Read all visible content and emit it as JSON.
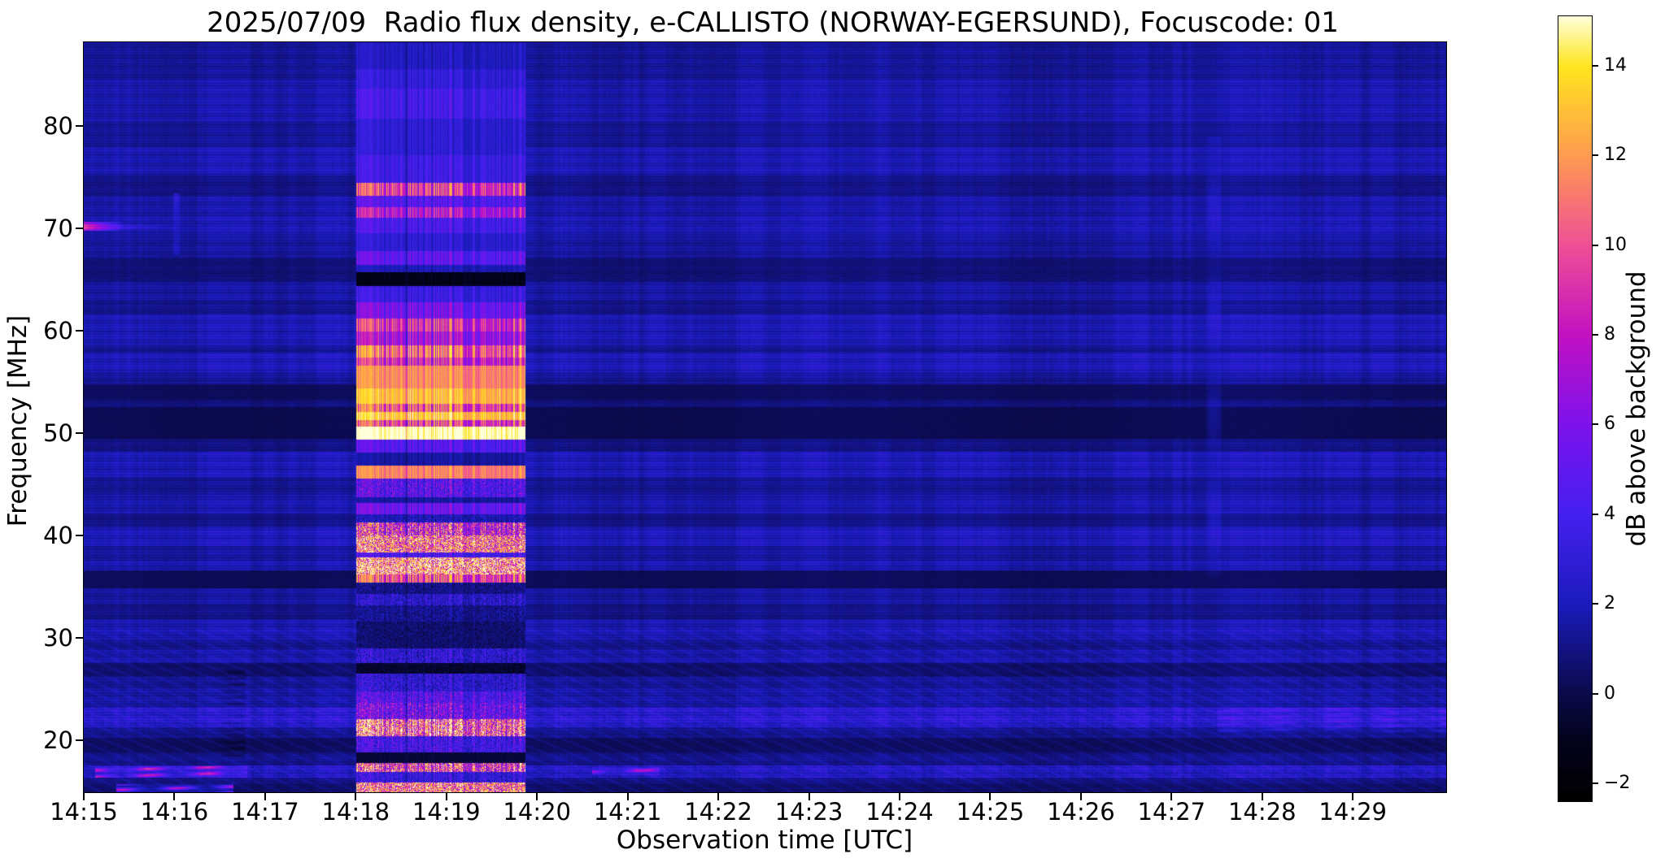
{
  "chart_data": {
    "type": "heatmap",
    "title": "2025/07/09  Radio flux density, e-CALLISTO (NORWAY-EGERSUND), Focuscode: 01",
    "xlabel": "Observation time [UTC]",
    "ylabel": "Frequency [MHz]",
    "colorbar_label": "dB above background",
    "x_tick_labels": [
      "14:15",
      "14:16",
      "14:17",
      "14:18",
      "14:19",
      "14:20",
      "14:21",
      "14:22",
      "14:23",
      "14:24",
      "14:25",
      "14:26",
      "14:27",
      "14:28",
      "14:29"
    ],
    "x_range_minutes": [
      0,
      15.03
    ],
    "y_ticks": [
      80,
      70,
      60,
      50,
      40,
      30,
      20
    ],
    "freq_range_mhz": [
      14.9,
      88.2
    ],
    "value_range_db": [
      -2.4,
      15.1
    ],
    "colorbar_ticks": [
      14,
      12,
      10,
      8,
      6,
      4,
      2,
      0,
      -2
    ],
    "grid": false,
    "colormap_stops": [
      [
        0.0,
        "#000000"
      ],
      [
        0.08,
        "#03031e"
      ],
      [
        0.137,
        "#0a0a4a],"
      ],
      [
        0.137,
        "#0a0a4a"
      ],
      [
        0.251,
        "#1b1bbd"
      ],
      [
        0.366,
        "#4520ef"
      ],
      [
        0.48,
        "#7d12ec"
      ],
      [
        0.594,
        "#c211c2"
      ],
      [
        0.709,
        "#ef5096"
      ],
      [
        0.823,
        "#ff9b50"
      ],
      [
        0.937,
        "#ffe51e"
      ],
      [
        1.0,
        "#ffffd9"
      ]
    ],
    "background_profile_db": [
      [
        88.2,
        84.5,
        1.4,
        0
      ],
      [
        84.5,
        80.5,
        1.8,
        0
      ],
      [
        80.5,
        78.0,
        1.4,
        0
      ],
      [
        78.0,
        75.2,
        1.9,
        0
      ],
      [
        75.2,
        73.2,
        1.1,
        0
      ],
      [
        73.2,
        71.2,
        1.7,
        0
      ],
      [
        71.2,
        69.3,
        1.9,
        0
      ],
      [
        69.3,
        67.2,
        1.5,
        0
      ],
      [
        67.2,
        64.9,
        0.8,
        0
      ],
      [
        64.9,
        63.0,
        1.6,
        0
      ],
      [
        63.0,
        61.6,
        1.2,
        0
      ],
      [
        61.6,
        58.6,
        2.0,
        0
      ],
      [
        58.6,
        57.9,
        1.3,
        0
      ],
      [
        57.9,
        55.9,
        2.1,
        0
      ],
      [
        55.9,
        54.8,
        1.4,
        0
      ],
      [
        54.8,
        53.3,
        0.35,
        0
      ],
      [
        53.3,
        52.6,
        0.9,
        0
      ],
      [
        52.6,
        49.5,
        0.15,
        0
      ],
      [
        49.5,
        48.2,
        1.0,
        0
      ],
      [
        48.2,
        45.7,
        2.0,
        0
      ],
      [
        45.7,
        44.0,
        1.3,
        0
      ],
      [
        44.0,
        42.2,
        1.8,
        0
      ],
      [
        42.2,
        40.9,
        1.1,
        0
      ],
      [
        40.9,
        39.0,
        2.1,
        0
      ],
      [
        39.0,
        37.5,
        1.5,
        0
      ],
      [
        37.5,
        36.6,
        1.9,
        0
      ],
      [
        36.6,
        34.9,
        0.3,
        0
      ],
      [
        34.9,
        33.3,
        1.5,
        0
      ],
      [
        33.3,
        31.8,
        1.1,
        0
      ],
      [
        31.8,
        29.9,
        1.9,
        0
      ],
      [
        29.9,
        28.8,
        1.2,
        0
      ],
      [
        28.8,
        27.6,
        1.7,
        0
      ],
      [
        27.6,
        26.3,
        0.6,
        0
      ],
      [
        26.3,
        25.0,
        1.3,
        0
      ],
      [
        25.0,
        23.2,
        1.6,
        0
      ],
      [
        23.2,
        21.3,
        2.6,
        0.5
      ],
      [
        21.3,
        20.3,
        1.2,
        0
      ],
      [
        20.3,
        18.8,
        0.35,
        0
      ],
      [
        18.8,
        17.6,
        1.1,
        0
      ],
      [
        17.6,
        16.4,
        2.2,
        0.6
      ],
      [
        16.4,
        15.7,
        1.0,
        0
      ],
      [
        15.7,
        14.9,
        0.5,
        0
      ]
    ],
    "background_default_db": 1.5,
    "burst": {
      "t_start_min": 3.0,
      "t_end_min": 4.87,
      "label": "broadband enhancement 14:18-14:20",
      "profile_db": [
        [
          88.2,
          85.6,
          2.2,
          0
        ],
        [
          85.6,
          83.7,
          3.0,
          0
        ],
        [
          83.7,
          80.8,
          3.8,
          0
        ],
        [
          80.8,
          77.2,
          2.8,
          0
        ],
        [
          77.2,
          74.5,
          3.6,
          0
        ],
        [
          74.5,
          73.2,
          9.2,
          0
        ],
        [
          73.2,
          72.1,
          4.5,
          0
        ],
        [
          72.1,
          71.1,
          7.5,
          0
        ],
        [
          71.1,
          69.6,
          4.0,
          0
        ],
        [
          69.6,
          67.8,
          2.8,
          0
        ],
        [
          67.8,
          66.5,
          4.8,
          0
        ],
        [
          66.5,
          65.8,
          2.0,
          0
        ],
        [
          65.8,
          64.4,
          -1.2,
          0
        ],
        [
          64.4,
          62.8,
          3.4,
          0
        ],
        [
          62.8,
          61.2,
          5.5,
          0
        ],
        [
          61.2,
          60.0,
          8.8,
          0
        ],
        [
          60.0,
          58.6,
          7.0,
          0
        ],
        [
          58.6,
          57.4,
          10.5,
          0
        ],
        [
          57.4,
          56.6,
          8.5,
          0
        ],
        [
          56.6,
          54.4,
          11.5,
          0
        ],
        [
          54.4,
          52.9,
          12.8,
          0
        ],
        [
          52.9,
          52.1,
          10.0,
          0
        ],
        [
          52.1,
          51.3,
          13.2,
          0
        ],
        [
          51.3,
          50.7,
          9.5,
          0
        ],
        [
          50.7,
          49.4,
          15.6,
          0
        ],
        [
          49.4,
          48.1,
          4.5,
          0
        ],
        [
          48.1,
          46.9,
          1.5,
          0
        ],
        [
          46.9,
          45.6,
          11.3,
          0
        ],
        [
          45.6,
          43.8,
          4.5,
          0.8
        ],
        [
          43.8,
          43.2,
          1.5,
          0
        ],
        [
          43.2,
          42.1,
          5.2,
          0
        ],
        [
          42.1,
          41.3,
          2.0,
          0.5
        ],
        [
          41.3,
          40.0,
          8.5,
          0.9
        ],
        [
          40.0,
          38.4,
          11.0,
          0.5
        ],
        [
          38.4,
          37.9,
          4.0,
          0
        ],
        [
          37.9,
          36.2,
          12.3,
          0.4
        ],
        [
          36.2,
          35.4,
          9.8,
          0
        ],
        [
          35.4,
          34.3,
          1.0,
          0.8
        ],
        [
          34.3,
          33.2,
          2.6,
          1.0
        ],
        [
          33.2,
          31.6,
          1.2,
          0.8
        ],
        [
          31.6,
          29.0,
          0.6,
          0.7
        ],
        [
          29.0,
          27.6,
          2.8,
          1.0
        ],
        [
          27.6,
          26.5,
          -0.6,
          0.4
        ],
        [
          26.5,
          24.8,
          2.8,
          1.0
        ],
        [
          24.8,
          23.7,
          4.4,
          1.0
        ],
        [
          23.7,
          22.1,
          5.4,
          1.0
        ],
        [
          22.1,
          20.4,
          10.8,
          0.7
        ],
        [
          20.4,
          18.8,
          3.8,
          0.8
        ],
        [
          18.8,
          17.8,
          -0.4,
          0.3
        ],
        [
          17.8,
          16.9,
          9.5,
          1.2
        ],
        [
          16.9,
          15.9,
          3.2,
          0.6
        ],
        [
          15.9,
          14.9,
          11.0,
          0.4
        ]
      ],
      "profile_default_db": 2.5
    },
    "features": [
      {
        "name": "bright-spot-70mhz-left-edge",
        "mode": "fadeR",
        "t": [
          0.0,
          0.45
        ],
        "f": [
          70.7,
          69.8
        ],
        "add": 5.5
      },
      {
        "name": "thin-row-70mhz",
        "mode": "fadeR",
        "t": [
          0.0,
          1.05
        ],
        "f": [
          70.45,
          70.0
        ],
        "add": 2.0
      },
      {
        "name": "vertical-streak-1416",
        "mode": "vline",
        "t": [
          0.98,
          1.05
        ],
        "f": [
          73.5,
          67.5
        ],
        "add": 1.8
      },
      {
        "name": "vertical-streak-1427",
        "mode": "vline",
        "t": [
          12.38,
          12.55
        ],
        "f": [
          79.0,
          36.0
        ],
        "add": 1.0
      },
      {
        "name": "blobs-17mhz-left",
        "mode": "blob",
        "t": [
          0.12,
          1.8
        ],
        "f": [
          17.5,
          16.4
        ],
        "add": 6.5
      },
      {
        "name": "blob-15mhz-left",
        "mode": "blob",
        "t": [
          0.35,
          1.65
        ],
        "f": [
          15.7,
          14.9
        ],
        "add": 7.5
      },
      {
        "name": "pink-spots-17mhz-1420",
        "mode": "blob",
        "t": [
          5.6,
          6.35
        ],
        "f": [
          17.4,
          16.6
        ],
        "add": 6.0
      },
      {
        "name": "22mhz-blobs-right",
        "mode": "blob",
        "t": [
          12.5,
          15.03
        ],
        "f": [
          23.2,
          20.8
        ],
        "add": 1.4
      },
      {
        "name": "dark-patch-1416",
        "mode": "blob",
        "t": [
          1.38,
          1.78
        ],
        "f": [
          27.0,
          18.2
        ],
        "add": -0.9
      }
    ]
  }
}
